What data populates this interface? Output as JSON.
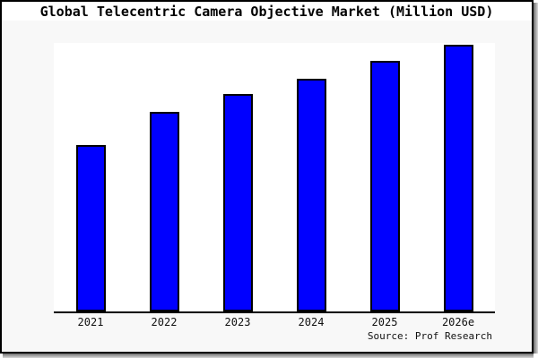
{
  "chart_data": {
    "type": "bar",
    "title": "Global Telecentric Camera Objective Market (Million USD)",
    "categories": [
      "2021",
      "2022",
      "2023",
      "2024",
      "2025",
      "2026e"
    ],
    "values": [
      62.1,
      74.4,
      81.0,
      86.7,
      93.3,
      99.2
    ],
    "ylim": [
      0,
      100
    ],
    "y_axis_visible": false,
    "x_axis_visible": true,
    "grid": false,
    "legend": false,
    "bar_color": "#0000ff",
    "bar_border_color": "#000000",
    "plot_background": "#ffffff",
    "figure_background": "#f8f8f8",
    "source_note": "Source: Prof Research"
  }
}
